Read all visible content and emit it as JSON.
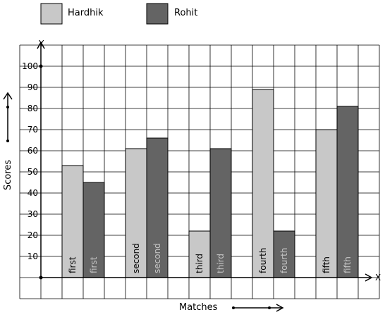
{
  "chart_data": {
    "type": "bar",
    "categories": [
      "first",
      "second",
      "third",
      "fourth",
      "fifth"
    ],
    "series": [
      {
        "name": "Hardhik",
        "values": [
          53,
          61,
          22,
          89,
          70
        ],
        "color": "#c8c8c8"
      },
      {
        "name": "Rohit",
        "values": [
          45,
          66,
          61,
          22,
          81
        ],
        "color": "#646464"
      }
    ],
    "xlabel": "Matches",
    "ylabel": "Scores",
    "x_axis_letter": "X",
    "y_axis_letter": "Y",
    "y_ticks": [
      "10",
      "20",
      "30",
      "40",
      "50",
      "60",
      "70",
      "80",
      "90",
      "100"
    ],
    "ylim": [
      0,
      110
    ],
    "grid": true,
    "legend_placement": "top-left"
  }
}
